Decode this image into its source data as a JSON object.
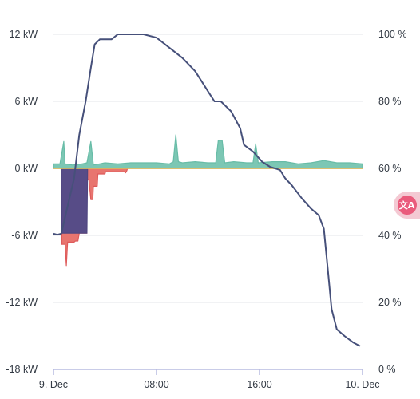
{
  "chart_data": {
    "type": "area",
    "title": "",
    "colors": {
      "solar": "#67bca7",
      "solar_fill": "#7cc7b4",
      "battery": "#4f4680",
      "battery_fill": "#574c87",
      "grid": "#de5b5b",
      "grid_fill": "#e8756f",
      "soc": "#46507a",
      "axis": "#b7bbe0"
    },
    "y_left": {
      "label": "",
      "range": [
        -18,
        12
      ],
      "unit": "kW",
      "ticks": [
        "12 kW",
        "6 kW",
        "0 kW",
        "-6 kW",
        "-12 kW",
        "-18 kW"
      ]
    },
    "y_right": {
      "label": "",
      "range": [
        0,
        100
      ],
      "unit": "%",
      "ticks": [
        "100 %",
        "80 %",
        "60 %",
        "40 %",
        "20 %",
        "0 %"
      ]
    },
    "x": {
      "range": [
        0,
        24
      ],
      "unit": "hours",
      "ticks": [
        "9. Dec",
        "08:00",
        "16:00",
        "10. Dec"
      ]
    },
    "grid": true,
    "series": [
      {
        "key": "solar",
        "axis": "left",
        "points": [
          [
            0,
            0.4
          ],
          [
            0.5,
            0.4
          ],
          [
            0.8,
            2.4
          ],
          [
            0.9,
            0.4
          ],
          [
            1.5,
            0.3
          ],
          [
            2.2,
            0.4
          ],
          [
            2.6,
            0.5
          ],
          [
            2.9,
            2.4
          ],
          [
            3.1,
            0.3
          ],
          [
            4,
            0.5
          ],
          [
            5,
            0.4
          ],
          [
            6,
            0.5
          ],
          [
            7,
            0.5
          ],
          [
            8,
            0.5
          ],
          [
            9,
            0.4
          ],
          [
            9.3,
            0.6
          ],
          [
            9.5,
            3.0
          ],
          [
            9.7,
            0.6
          ],
          [
            10,
            0.5
          ],
          [
            11,
            0.6
          ],
          [
            12,
            0.5
          ],
          [
            12.6,
            0.5
          ],
          [
            12.8,
            2.5
          ],
          [
            13.1,
            2.5
          ],
          [
            13.3,
            0.5
          ],
          [
            14,
            0.6
          ],
          [
            15,
            0.5
          ],
          [
            15.5,
            0.5
          ],
          [
            15.7,
            2.2
          ],
          [
            15.9,
            0.5
          ],
          [
            17,
            0.6
          ],
          [
            18,
            0.6
          ],
          [
            19,
            0.4
          ],
          [
            20,
            0.5
          ],
          [
            21,
            0.7
          ],
          [
            22,
            0.5
          ],
          [
            23,
            0.5
          ],
          [
            24,
            0.4
          ]
        ]
      },
      {
        "key": "battery",
        "axis": "left",
        "points": [
          [
            0,
            0
          ],
          [
            0.6,
            0
          ],
          [
            0.65,
            -5.8
          ],
          [
            2.6,
            -5.8
          ],
          [
            2.65,
            0
          ],
          [
            24,
            0
          ]
        ]
      },
      {
        "key": "grid",
        "axis": "left",
        "points": [
          [
            0,
            0
          ],
          [
            0.6,
            0
          ],
          [
            0.65,
            -6.8
          ],
          [
            0.9,
            -6.8
          ],
          [
            1.0,
            -8.7
          ],
          [
            1.1,
            -6.6
          ],
          [
            1.6,
            -6.6
          ],
          [
            1.7,
            -6.5
          ],
          [
            1.9,
            -6.5
          ],
          [
            2.0,
            -5.8
          ],
          [
            2.6,
            -5.8
          ],
          [
            2.6,
            -1.0
          ],
          [
            2.75,
            -1.0
          ],
          [
            2.9,
            -2.8
          ],
          [
            3.05,
            -2.8
          ],
          [
            3.1,
            -1.6
          ],
          [
            3.4,
            -1.6
          ],
          [
            3.45,
            -0.5
          ],
          [
            4,
            -0.5
          ],
          [
            4.05,
            -0.3
          ],
          [
            5.5,
            -0.3
          ],
          [
            5.6,
            -0.4
          ],
          [
            5.7,
            -0.2
          ],
          [
            5.75,
            0
          ],
          [
            24,
            0
          ]
        ]
      },
      {
        "key": "soc",
        "axis": "right",
        "points": [
          [
            0,
            40.5
          ],
          [
            0.3,
            40.2
          ],
          [
            0.6,
            40.5
          ],
          [
            1.6,
            57
          ],
          [
            2.0,
            70
          ],
          [
            2.5,
            80
          ],
          [
            2.9,
            90
          ],
          [
            3.2,
            97
          ],
          [
            3.6,
            98.5
          ],
          [
            4.5,
            98.5
          ],
          [
            5,
            100
          ],
          [
            7,
            100
          ],
          [
            8,
            99
          ],
          [
            9,
            96
          ],
          [
            10,
            93
          ],
          [
            11,
            89
          ],
          [
            12,
            83
          ],
          [
            12.5,
            80
          ],
          [
            13,
            80
          ],
          [
            13.8,
            77
          ],
          [
            14.5,
            72
          ],
          [
            14.8,
            67
          ],
          [
            15.5,
            65
          ],
          [
            16.2,
            62
          ],
          [
            16.8,
            60.5
          ],
          [
            17.6,
            59.5
          ],
          [
            18,
            57
          ],
          [
            18.5,
            55
          ],
          [
            19.3,
            51
          ],
          [
            20,
            48
          ],
          [
            20.6,
            46
          ],
          [
            21.0,
            42
          ],
          [
            21.3,
            30
          ],
          [
            21.6,
            18
          ],
          [
            22,
            12
          ],
          [
            22.6,
            10
          ],
          [
            23.3,
            8
          ],
          [
            23.8,
            7
          ]
        ]
      }
    ]
  }
}
